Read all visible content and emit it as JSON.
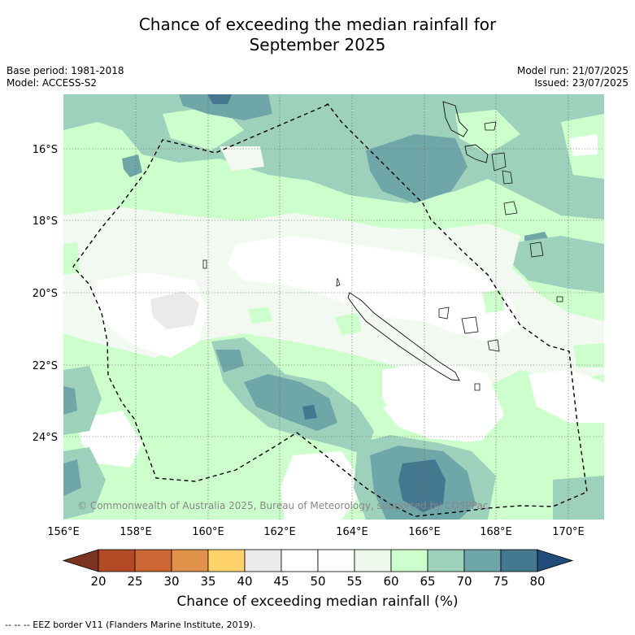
{
  "title_line1": "Chance of exceeding the median rainfall for",
  "title_line2": "September 2025",
  "base_period": "Base period: 1981-2018",
  "model": "Model: ACCESS-S2",
  "model_run": "Model run: 21/07/2025",
  "issued": "Issued: 23/07/2025",
  "lat_labels": [
    "16°S",
    "18°S",
    "20°S",
    "22°S",
    "24°S"
  ],
  "lon_labels": [
    "156°E",
    "158°E",
    "160°E",
    "162°E",
    "164°E",
    "166°E",
    "168°E",
    "170°E"
  ],
  "copyright": "© Commonwealth of Australia 2025, Bureau of Meteorology, supported by COSPPac",
  "colorbar": {
    "title": "Chance of exceeding median rainfall (%)",
    "ticks": [
      "20",
      "25",
      "30",
      "35",
      "40",
      "45",
      "50",
      "55",
      "60",
      "65",
      "70",
      "75",
      "80"
    ],
    "colors": [
      "#7a3420",
      "#b24a25",
      "#cc6633",
      "#e0914a",
      "#ffd26c",
      "#eceae8",
      "#ffffff",
      "#fbfefb",
      "#edf7ec",
      "#ccffcc",
      "#9ed1bb",
      "#6fa6a8",
      "#44788f",
      "#1f4d78"
    ]
  },
  "footnote": "--  --  -- EEZ border V11 (Flanders Marine Institute, 2019).",
  "colors": {
    "c45": "#eceae8",
    "c50": "#ffffff",
    "c55": "#f1f9f0",
    "c60": "#ccffcc",
    "c65": "#9ed1bb",
    "c70": "#6fa6a8",
    "c75": "#44788f"
  }
}
